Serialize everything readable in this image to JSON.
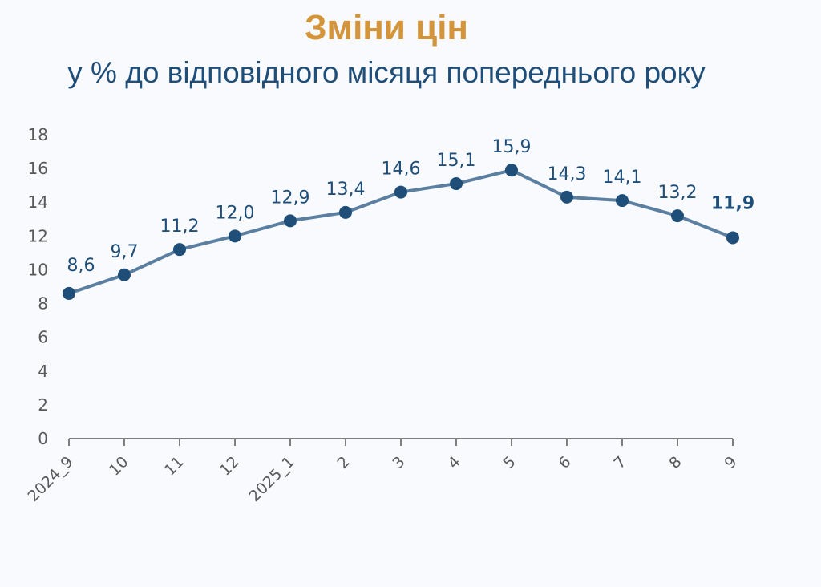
{
  "chart_data": {
    "type": "line",
    "title": "Зміни цін",
    "subtitle": "у % до відповідного місяця попереднього року",
    "categories": [
      "2024_9",
      "10",
      "11",
      "12",
      "2025_1",
      "2",
      "3",
      "4",
      "5",
      "6",
      "7",
      "8",
      "9"
    ],
    "values": [
      8.6,
      9.7,
      11.2,
      12.0,
      12.9,
      13.4,
      14.6,
      15.1,
      15.9,
      14.3,
      14.1,
      13.2,
      11.9
    ],
    "data_labels": [
      "8,6",
      "9,7",
      "11,2",
      "12,0",
      "12,9",
      "13,4",
      "14,6",
      "15,1",
      "15,9",
      "14,3",
      "14,1",
      "13,2",
      "11,9"
    ],
    "ylim": [
      0,
      18
    ],
    "yticks": [
      "0",
      "2",
      "4",
      "6",
      "8",
      "10",
      "12",
      "14",
      "16",
      "18"
    ],
    "xlabel": "",
    "ylabel": "",
    "grid": false,
    "legend": "none",
    "colors": {
      "line": "#5b7fa0",
      "marker": "#1f4e79",
      "title": "#d4953a",
      "subtitle": "#1f4e79"
    }
  }
}
